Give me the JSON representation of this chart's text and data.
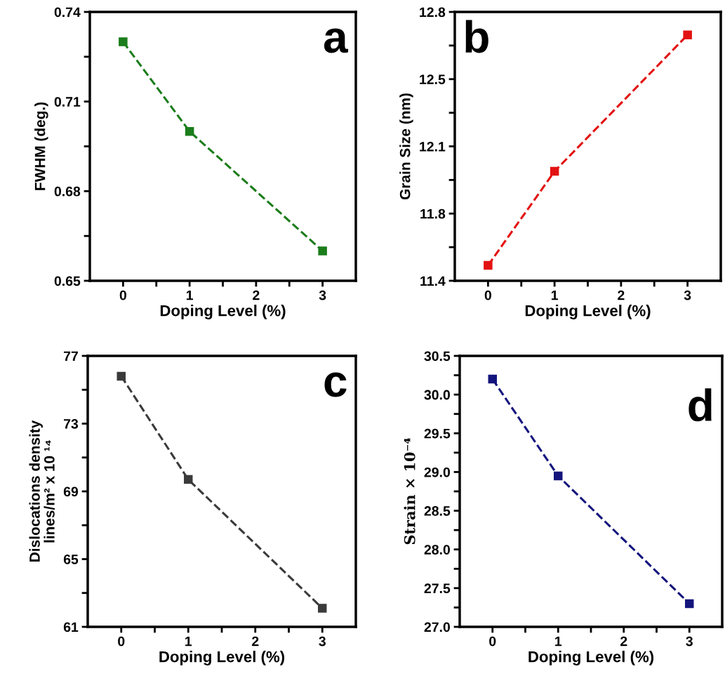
{
  "chart_data": [
    {
      "type": "line",
      "x": [
        0,
        1,
        3
      ],
      "xlim": [
        -0.5,
        3.5
      ],
      "xticks": [
        0,
        {
          "value": 0.5,
          "label": null
        },
        1,
        {
          "value": 1.5,
          "label": null
        },
        2,
        {
          "value": 2.5,
          "label": null
        },
        3
      ],
      "xlabel": "Doping Level (%)",
      "ylabel": "FWHM (deg.)",
      "ylim": [
        0.65,
        0.74
      ],
      "yticks": [
        {
          "value": 0.65,
          "label": "0.65"
        },
        {
          "value": 0.665,
          "label": null
        },
        {
          "value": 0.68,
          "label": "0.68"
        },
        {
          "value": 0.695,
          "label": null
        },
        {
          "value": 0.71,
          "label": "0.71"
        },
        {
          "value": 0.725,
          "label": null
        },
        {
          "value": 0.74,
          "label": "0.74"
        }
      ],
      "series": [
        {
          "color": "#1b7d1b",
          "values": [
            0.73,
            0.7,
            0.66
          ]
        }
      ],
      "marker": "square",
      "line_style": "dashed",
      "grid": false,
      "legend": false,
      "annotations": [
        "a"
      ]
    },
    {
      "type": "line",
      "x": [
        0,
        1,
        3
      ],
      "xlim": [
        -0.5,
        3.5
      ],
      "xticks": [
        0,
        {
          "value": 0.5,
          "label": null
        },
        1,
        {
          "value": 1.5,
          "label": null
        },
        2,
        {
          "value": 2.5,
          "label": null
        },
        3
      ],
      "xlabel": "Doping Level (%)",
      "ylabel": "Grain Size (nm)",
      "ylim": [
        11.4,
        12.8
      ],
      "yticks": [
        11.4,
        {
          "value": 11.575,
          "label": null
        },
        {
          "value": 11.75,
          "label": "11.8"
        },
        {
          "value": 11.925,
          "label": null
        },
        12.1,
        {
          "value": 12.275,
          "label": null
        },
        {
          "value": 12.45,
          "label": "12.5"
        },
        {
          "value": 12.625,
          "label": null
        },
        12.8
      ],
      "series": [
        {
          "color": "#e31212",
          "values": [
            11.48,
            11.97,
            12.68
          ]
        }
      ],
      "marker": "square",
      "line_style": "dashed",
      "grid": false,
      "legend": false,
      "annotations": [
        "b"
      ]
    },
    {
      "type": "line",
      "x": [
        0,
        1,
        3
      ],
      "xlim": [
        -0.5,
        3.5
      ],
      "xticks": [
        0,
        {
          "value": 0.5,
          "label": null
        },
        1,
        {
          "value": 1.5,
          "label": null
        },
        2,
        {
          "value": 2.5,
          "label": null
        },
        3
      ],
      "xlabel": "Doping Level (%)",
      "ylabel": "Dislocations density\nlines/m² x 10 ¹⁴",
      "ylim": [
        61,
        77
      ],
      "yticks": [
        61,
        {
          "value": 63,
          "label": null
        },
        65,
        {
          "value": 67,
          "label": null
        },
        69,
        {
          "value": 71,
          "label": null
        },
        73,
        {
          "value": 75,
          "label": null
        },
        77
      ],
      "series": [
        {
          "color": "#3a3a3a",
          "values": [
            75.8,
            69.7,
            62.1
          ]
        }
      ],
      "marker": "square",
      "line_style": "dashed",
      "grid": false,
      "legend": false,
      "annotations": [
        "c"
      ]
    },
    {
      "type": "line",
      "x": [
        0,
        1,
        3
      ],
      "xlim": [
        -0.5,
        3.5
      ],
      "xticks": [
        0,
        {
          "value": 0.5,
          "label": null
        },
        1,
        {
          "value": 1.5,
          "label": null
        },
        2,
        {
          "value": 2.5,
          "label": null
        },
        3
      ],
      "xlabel": "Doping Level (%)",
      "ylabel": "Strain × 10⁻⁴",
      "ylim": [
        27.0,
        30.5
      ],
      "yticks": [
        {
          "value": 27.0,
          "label": "27.0"
        },
        {
          "value": 27.25,
          "label": null
        },
        27.5,
        {
          "value": 27.75,
          "label": null
        },
        {
          "value": 28.0,
          "label": "28.0"
        },
        {
          "value": 28.25,
          "label": null
        },
        28.5,
        {
          "value": 28.75,
          "label": null
        },
        {
          "value": 29.0,
          "label": "29.0"
        },
        {
          "value": 29.25,
          "label": null
        },
        29.5,
        {
          "value": 29.75,
          "label": null
        },
        {
          "value": 30.0,
          "label": "30.0"
        },
        {
          "value": 30.25,
          "label": null
        },
        30.5
      ],
      "series": [
        {
          "color": "#14147d",
          "values": [
            30.2,
            28.95,
            27.3
          ]
        }
      ],
      "marker": "square",
      "line_style": "dashed",
      "grid": false,
      "legend": false,
      "annotations": [
        "d"
      ]
    }
  ]
}
